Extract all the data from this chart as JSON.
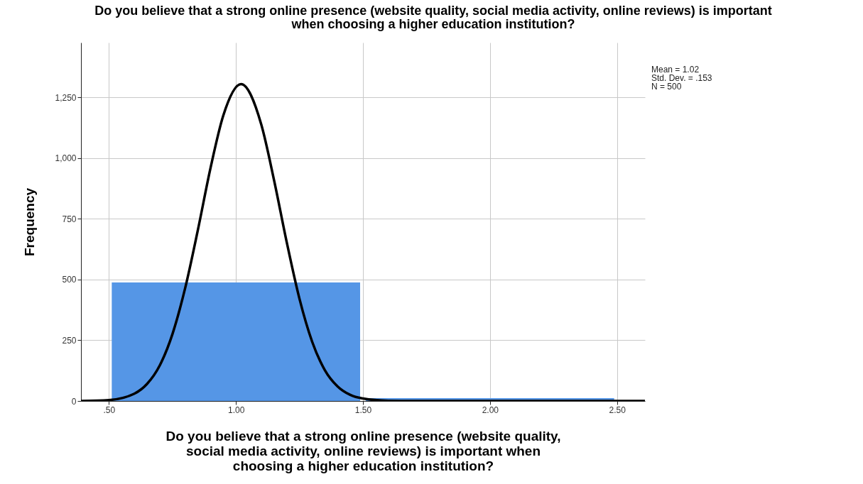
{
  "chart_data": {
    "type": "histogram",
    "title": "Do you believe that a strong online presence (website quality, social media activity, online reviews) is important when choosing a higher education institution?",
    "xlabel": "Do you believe that a strong online presence (website quality, social media activity, online reviews) is important when choosing a higher education institution?",
    "ylabel": "Frequency",
    "series": [
      {
        "type": "histogram",
        "color": "#5596e6",
        "bins": [
          0.5,
          1.5,
          2.5
        ],
        "values": [
          488,
          12
        ]
      },
      {
        "type": "line",
        "color": "#000000",
        "x": [
          0.39,
          0.5,
          0.6,
          0.65,
          0.7,
          0.75,
          0.8,
          0.85,
          0.9,
          0.95,
          1.02,
          1.1,
          1.15,
          1.2,
          1.25,
          1.3,
          1.35,
          1.4,
          1.45,
          1.5,
          1.6,
          1.7,
          2.0,
          2.61
        ],
        "values": [
          0,
          4,
          30,
          70,
          146,
          275,
          464,
          703,
          959,
          1174,
          1304,
          1137,
          909,
          653,
          421,
          244,
          127,
          60,
          25,
          10,
          1,
          0,
          0,
          0
        ]
      }
    ],
    "xlim": [
      0.39,
      2.61
    ],
    "ylim": [
      0,
      1475
    ],
    "xticks": [
      {
        "value": 0.5,
        "label": ".50"
      },
      {
        "value": 1,
        "label": "1.00"
      },
      {
        "value": 1.5,
        "label": "1.50"
      },
      {
        "value": 2,
        "label": "2.00"
      },
      {
        "value": 2.5,
        "label": "2.50"
      }
    ],
    "yticks": [
      0,
      250,
      500,
      750,
      {
        "value": 1000,
        "label": "1,000"
      },
      {
        "value": 1250,
        "label": "1,250"
      }
    ],
    "grid": true,
    "annotations": [
      "Mean = 1.02",
      "Std. Dev. = .153",
      "N = 500"
    ]
  }
}
